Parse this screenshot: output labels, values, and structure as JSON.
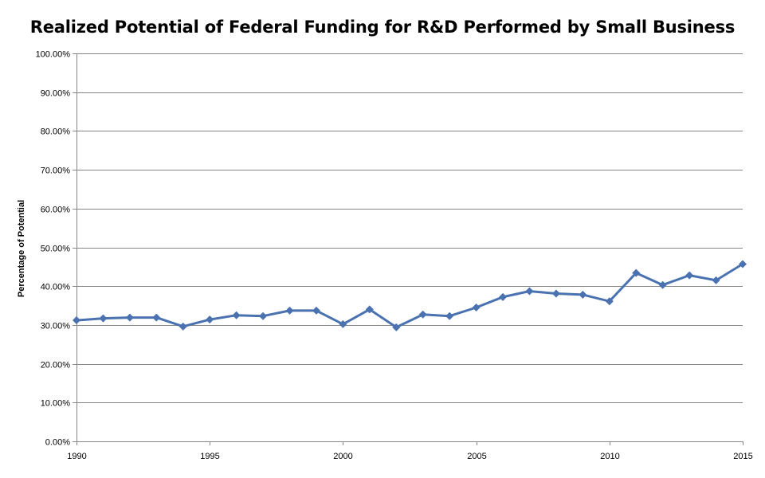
{
  "chart_data": {
    "type": "line",
    "title": "Realized Potential of Federal Funding for R&D Performed by Small Business",
    "xlabel": "",
    "ylabel": "Percentage of Potential",
    "xlim": [
      1990,
      2015
    ],
    "ylim": [
      0,
      100
    ],
    "x_ticks": [
      "1990",
      "1995",
      "2000",
      "2005",
      "2010",
      "2015"
    ],
    "y_ticks": [
      "0.00%",
      "10.00%",
      "20.00%",
      "30.00%",
      "40.00%",
      "50.00%",
      "60.00%",
      "70.00%",
      "80.00%",
      "90.00%",
      "100.00%"
    ],
    "grid": "horizontal",
    "legend": "none",
    "colors": {
      "series": "#4a72b0",
      "grid": "#868686",
      "axis": "#868686"
    },
    "marker": "diamond",
    "series": [
      {
        "x": [
          1990,
          1991,
          1992,
          1993,
          1994,
          1995,
          1996,
          1997,
          1998,
          1999,
          2000,
          2001,
          2002,
          2003,
          2004,
          2005,
          2006,
          2007,
          2008,
          2009,
          2010,
          2011,
          2012,
          2013,
          2014,
          2015
        ],
        "values": [
          31.2,
          31.7,
          31.9,
          31.9,
          29.6,
          31.4,
          32.5,
          32.3,
          33.7,
          33.7,
          30.2,
          34.0,
          29.4,
          32.7,
          32.3,
          34.5,
          37.2,
          38.7,
          38.1,
          37.8,
          36.1,
          43.4,
          40.3,
          42.8,
          41.5,
          45.7
        ]
      }
    ]
  }
}
